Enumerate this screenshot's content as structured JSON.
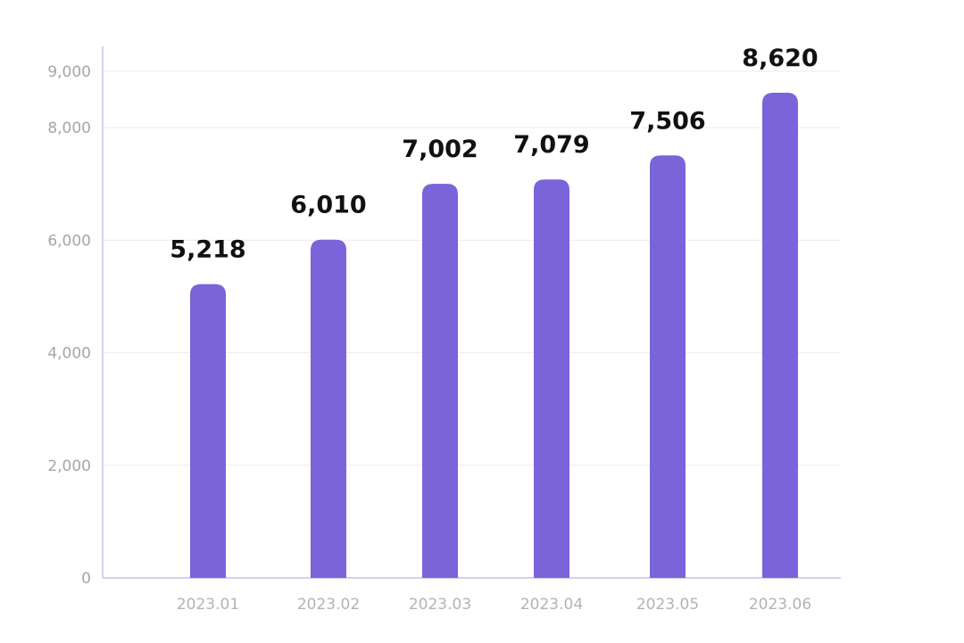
{
  "chart_data": {
    "type": "bar",
    "title": "",
    "xlabel": "",
    "ylabel": "",
    "categories": [
      "2023.01",
      "2023.02",
      "2023.03",
      "2023.04",
      "2023.05",
      "2023.06"
    ],
    "values": [
      5218,
      6010,
      7002,
      7079,
      7506,
      8620
    ],
    "value_labels": [
      "5,218",
      "6,010",
      "7,002",
      "7,079",
      "7,506",
      "8,620"
    ],
    "ylim": [
      0,
      9000
    ],
    "yticks": [
      0,
      2000,
      4000,
      6000,
      8000,
      9000
    ],
    "ytick_labels": [
      "0",
      "2,000",
      "4,000",
      "6,000",
      "8,000",
      "9,000"
    ],
    "grid": true,
    "legend": "none"
  },
  "colors": {
    "bar": "#7b63d9",
    "axis": "#c9c2ea",
    "grid": "#ececec",
    "tick_text": "#a6a6a6",
    "value_label": "#111111"
  }
}
